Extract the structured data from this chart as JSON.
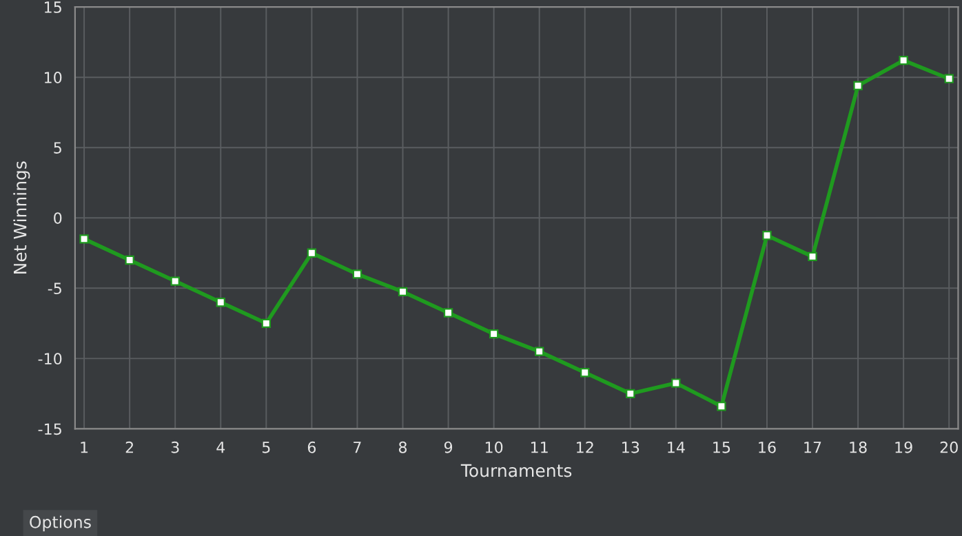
{
  "chart_data": {
    "type": "line",
    "xlabel": "Tournaments",
    "ylabel": "Net Winnings",
    "x": [
      1,
      2,
      3,
      4,
      5,
      6,
      7,
      8,
      9,
      10,
      11,
      12,
      13,
      14,
      15,
      16,
      17,
      18,
      19,
      20
    ],
    "series": [
      {
        "color": "#1f9a1f",
        "values": [
          -1.5,
          -3,
          -4.5,
          -6,
          -7.5,
          -2.5,
          -4,
          -5.25,
          -6.75,
          -8.25,
          -9.5,
          -11,
          -12.5,
          -11.75,
          -13.4,
          -1.25,
          -2.75,
          9.4,
          11.2,
          9.9
        ]
      }
    ],
    "xlim": [
      0.8,
      20.2
    ],
    "xticks": [
      1,
      2,
      3,
      4,
      5,
      6,
      7,
      8,
      9,
      10,
      11,
      12,
      13,
      14,
      15,
      16,
      17,
      18,
      19,
      20
    ],
    "ylim": [
      -15,
      15
    ],
    "yticks": [
      -15,
      -10,
      -5,
      0,
      5,
      10,
      15
    ],
    "grid": true,
    "marker": "square",
    "line_style": "solid",
    "annotations": [
      "Options"
    ]
  }
}
